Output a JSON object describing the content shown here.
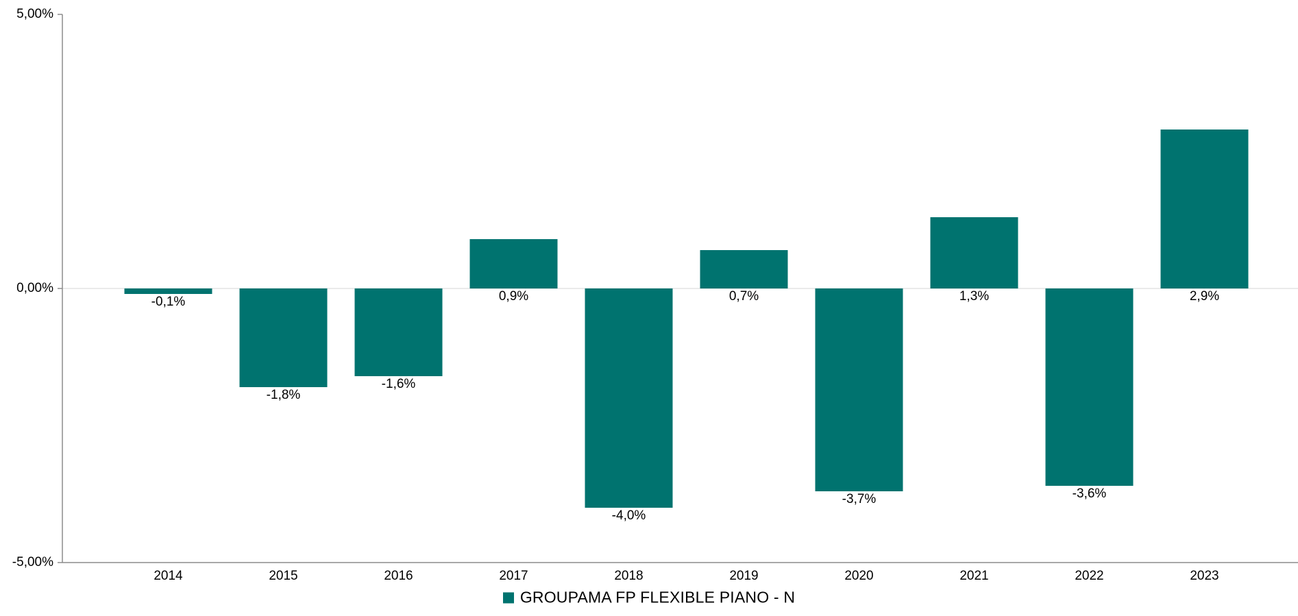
{
  "chart_data": {
    "type": "bar",
    "categories": [
      "2014",
      "2015",
      "2016",
      "2017",
      "2018",
      "2019",
      "2020",
      "2021",
      "2022",
      "2023"
    ],
    "series": [
      {
        "name": "GROUPAMA FP FLEXIBLE PIANO - N",
        "values": [
          -0.1,
          -1.8,
          -1.6,
          0.9,
          -4.0,
          0.7,
          -3.7,
          1.3,
          -3.6,
          2.9
        ],
        "labels": [
          "-0,1%",
          "-1,8%",
          "-1,6%",
          "0,9%",
          "-4,0%",
          "0,7%",
          "-3,7%",
          "1,3%",
          "-3,6%",
          "2,9%"
        ],
        "color": "#00736F"
      }
    ],
    "ylim": [
      -5,
      5
    ],
    "yticks": [
      5,
      0,
      -5
    ],
    "ytick_labels": [
      "5,00%",
      "0,00%",
      "-5,00%"
    ],
    "title": "",
    "xlabel": "",
    "ylabel": "",
    "grid": false,
    "legend_position": "bottom-center"
  },
  "legend": {
    "label": "GROUPAMA FP FLEXIBLE PIANO - N"
  }
}
